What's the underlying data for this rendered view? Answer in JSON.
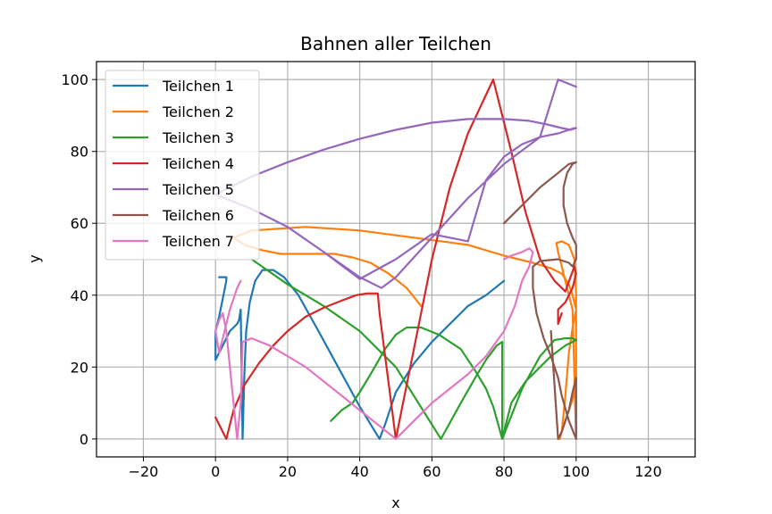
{
  "chart_data": {
    "type": "line",
    "title": "Bahnen aller Teilchen",
    "xlabel": "x",
    "ylabel": "y",
    "xlim": [
      -33,
      133
    ],
    "ylim": [
      -5,
      105
    ],
    "xticks": [
      -20,
      0,
      20,
      40,
      60,
      80,
      100,
      120
    ],
    "yticks": [
      0,
      20,
      40,
      60,
      80,
      100
    ],
    "grid": true,
    "legend_position": "upper-left",
    "series": [
      {
        "name": "Teilchen 1",
        "color": "#1f77b4",
        "x": [
          1,
          3,
          3,
          2,
          1,
          0,
          0,
          2,
          4,
          5,
          6,
          6.5,
          7,
          7.5,
          8,
          8.5,
          9.5,
          11,
          13,
          16,
          19,
          23,
          28,
          34,
          40,
          45.5,
          47,
          50,
          55,
          60,
          65,
          70,
          75,
          80
        ],
        "y": [
          45,
          45,
          44,
          39,
          34,
          30,
          22,
          26,
          30,
          31,
          32,
          33,
          36,
          0,
          18,
          30,
          38,
          44,
          47,
          47,
          45,
          40,
          31,
          20,
          9,
          0,
          4,
          13,
          21,
          27,
          32,
          37,
          40,
          44
        ]
      },
      {
        "name": "Teilchen 2",
        "color": "#ff7f0e",
        "x": [
          57,
          53,
          48,
          43,
          38,
          33,
          28,
          23,
          18,
          13,
          8,
          5,
          10,
          25,
          40,
          55,
          70,
          80,
          88,
          93,
          96,
          98,
          99,
          100,
          99,
          98,
          97,
          96,
          95.5,
          96,
          97,
          98,
          99,
          100,
          100,
          99.5,
          98,
          96,
          94.5,
          95,
          96,
          97,
          98,
          99,
          100
        ],
        "y": [
          37,
          42,
          46,
          49,
          50.5,
          51.5,
          51.5,
          51.5,
          51.5,
          52.5,
          54,
          56,
          58,
          59,
          58,
          56,
          54,
          51,
          49,
          47.5,
          46,
          43,
          40,
          36,
          31,
          24,
          12,
          2,
          0,
          2,
          5,
          8,
          11,
          15,
          40,
          50,
          54,
          55,
          54.5,
          52,
          48,
          44,
          40,
          36,
          0
        ]
      },
      {
        "name": "Teilchen 3",
        "color": "#2ca02c",
        "x": [
          10,
          20,
          30,
          40,
          50,
          62.5,
          68,
          72,
          75,
          78,
          79.5,
          79.5,
          85,
          90,
          94,
          97,
          99,
          100,
          97,
          93,
          90,
          86,
          82,
          79.5,
          77,
          75,
          72,
          68,
          62,
          57,
          53,
          50,
          47,
          43,
          40,
          38,
          35,
          32
        ],
        "y": [
          50,
          43,
          37,
          30,
          20,
          0,
          10,
          17,
          22,
          26,
          27,
          0,
          14,
          23,
          27.5,
          28,
          28,
          27.5,
          26,
          23,
          20,
          16,
          10,
          0,
          9,
          14,
          19,
          25,
          29,
          31,
          31,
          29,
          25,
          18,
          13,
          10,
          8,
          5
        ]
      },
      {
        "name": "Teilchen 4",
        "color": "#d62728",
        "x": [
          0,
          1.5,
          3,
          5,
          8,
          12,
          16,
          20,
          25,
          30,
          35,
          39,
          42,
          45,
          45.5,
          50,
          55,
          60,
          65,
          70,
          77,
          82,
          86,
          90,
          94,
          97,
          99.5,
          100,
          99,
          97,
          95,
          95,
          96
        ],
        "y": [
          6,
          3,
          0,
          8,
          15,
          21,
          26,
          30,
          34,
          36.5,
          38.5,
          40,
          40.5,
          40.5,
          35,
          0,
          25,
          50,
          70,
          85,
          100,
          80,
          63,
          50,
          44,
          41,
          48,
          46,
          42,
          38,
          36,
          32,
          35
        ]
      },
      {
        "name": "Teilchen 5",
        "color": "#9467bd",
        "x": [
          0,
          10,
          20,
          30,
          40,
          46,
          50,
          60,
          70,
          80,
          87,
          92,
          96,
          98.5,
          100,
          99.5,
          98,
          95,
          90,
          85,
          80,
          75,
          70,
          60,
          50,
          40,
          30,
          20,
          10,
          0,
          10,
          20,
          30,
          40,
          46,
          50,
          60,
          70,
          80,
          90,
          95,
          100
        ],
        "y": [
          68,
          73,
          77,
          80.5,
          83.5,
          85,
          86,
          88,
          89,
          89,
          88.5,
          87.5,
          86.5,
          86,
          86.5,
          86.5,
          86,
          85,
          84,
          82,
          78.5,
          72,
          55,
          57,
          50,
          44.5,
          52,
          59,
          64,
          68,
          64,
          59,
          52,
          45,
          42,
          45,
          56,
          67,
          76.5,
          84,
          100,
          98
        ]
      },
      {
        "name": "Teilchen 6",
        "color": "#8c564b",
        "x": [
          80,
          85,
          90,
          95,
          98,
          100,
          99,
          97.5,
          96.5,
          96.5,
          97.5,
          99,
          100,
          100,
          99,
          98,
          95,
          90,
          88,
          88,
          89,
          91,
          93,
          94,
          95,
          96,
          98,
          100,
          100,
          99,
          98,
          96,
          95,
          94,
          93
        ],
        "y": [
          60,
          65,
          70,
          74,
          76.5,
          77,
          76.5,
          74,
          70,
          65,
          60,
          56,
          54,
          50,
          48,
          49,
          50,
          49.5,
          48,
          42,
          35,
          28,
          23,
          20,
          17,
          12,
          5,
          0,
          17,
          13,
          8,
          2,
          0,
          15,
          30
        ]
      },
      {
        "name": "Teilchen 7",
        "color": "#e377c2",
        "x": [
          7,
          6,
          5,
          4,
          3,
          2,
          1,
          0,
          1,
          2,
          3,
          4,
          5,
          6,
          7,
          7.5,
          10,
          15,
          20,
          25,
          30,
          35,
          40,
          45,
          50,
          55,
          60,
          65,
          70,
          75,
          80,
          83,
          85,
          87,
          88,
          87,
          85,
          82,
          80
        ],
        "y": [
          44,
          42,
          39,
          36,
          32,
          28,
          24,
          30,
          33,
          35,
          30,
          20,
          10,
          0,
          10,
          27,
          28,
          26,
          23,
          20,
          16,
          12,
          8,
          4,
          0,
          5,
          10,
          14,
          18,
          23,
          30,
          37,
          44,
          48,
          52,
          53,
          52,
          51,
          50
        ]
      }
    ]
  }
}
